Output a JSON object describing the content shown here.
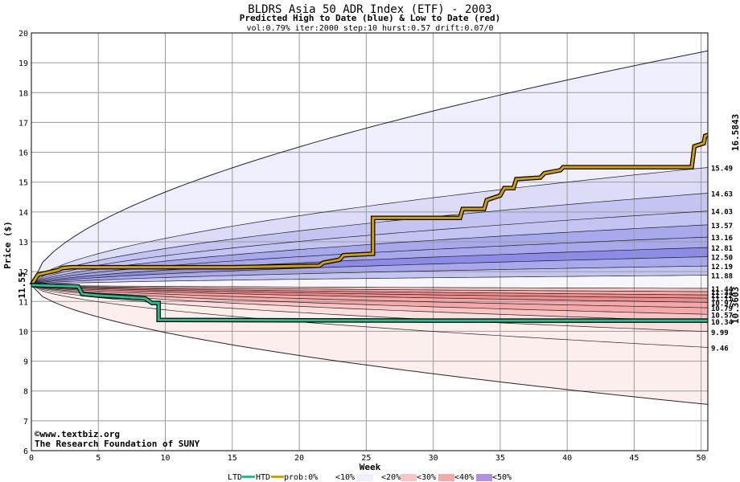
{
  "title": "BLDRS Asia 50 ADR Index (ETF) - 2003",
  "subtitle": "Predicted High to Date (blue) &  Low to Date (red)",
  "params": "vol:0.79% iter:2000 step:10 hurst:0.57 drift:0.07/0",
  "credit1": "©www.textbiz.org",
  "credit2": "The Research Foundation of SUNY",
  "colors": {
    "htd_line": "#d4a000",
    "ltd_line": "#20c090",
    "band_blue": [
      "#eeeefc",
      "#dcdcf8",
      "#c4c4f2",
      "#a8a8ec",
      "#8c8ce6"
    ],
    "band_red": [
      "#fdeeee",
      "#fbdede",
      "#f8c4c4",
      "#f4a8a8",
      "#f08c8c"
    ]
  },
  "legend": {
    "ltd": "LTD",
    "htd": "HTD",
    "prob": "prob:0%",
    "p10": "<10%",
    "p20": "<20%",
    "p30": "<30%",
    "p40": "<40%",
    "p50": "<50%"
  },
  "chart_data": {
    "type": "area",
    "xlabel": "Week",
    "ylabel": "Price ($)",
    "xlim": [
      0,
      50.5
    ],
    "ylim": [
      6,
      20
    ],
    "x_ticks": [
      0,
      5,
      10,
      15,
      20,
      25,
      30,
      35,
      40,
      45,
      50
    ],
    "y_ticks": [
      6,
      7,
      8,
      9,
      10,
      11,
      12,
      13,
      14,
      15,
      16,
      17,
      18,
      19,
      20
    ],
    "grid": true,
    "start_price": 11.55,
    "start_label": "11.55",
    "end_week": 50.5,
    "upper_end_levels": [
      19.4,
      15.49,
      14.63,
      14.03,
      13.57,
      13.16,
      12.81,
      12.5,
      12.19,
      11.88
    ],
    "lower_end_levels": [
      11.44,
      11.33,
      11.22,
      11.11,
      10.97,
      10.79,
      10.57,
      10.34,
      9.99,
      9.46,
      7.55
    ],
    "right_labels": [
      "15.49",
      "14.63",
      "14.03",
      "13.57",
      "13.16",
      "12.81",
      "12.50",
      "12.19",
      "11.88",
      "11.44",
      "11.33",
      "11.22",
      "11.11",
      "10.97",
      "10.79",
      "10.57",
      "10.34",
      "9.99",
      "9.46"
    ],
    "htd_final": "16.5843",
    "ltd_final": "10.3603",
    "htd_path": [
      [
        0,
        11.55
      ],
      [
        0.5,
        11.9
      ],
      [
        1,
        11.95
      ],
      [
        2,
        12.05
      ],
      [
        2.3,
        12.12
      ],
      [
        3,
        12.15
      ],
      [
        10,
        12.15
      ],
      [
        15,
        12.15
      ],
      [
        21.5,
        12.2
      ],
      [
        21.8,
        12.3
      ],
      [
        23,
        12.4
      ],
      [
        23.3,
        12.55
      ],
      [
        25.5,
        12.6
      ],
      [
        25.5,
        13.8
      ],
      [
        32,
        13.8
      ],
      [
        32.2,
        14.1
      ],
      [
        33.8,
        14.1
      ],
      [
        34,
        14.4
      ],
      [
        35,
        14.55
      ],
      [
        35.3,
        14.8
      ],
      [
        36,
        14.8
      ],
      [
        36.2,
        15.1
      ],
      [
        38,
        15.15
      ],
      [
        38.3,
        15.3
      ],
      [
        39.5,
        15.4
      ],
      [
        39.7,
        15.5
      ],
      [
        49.3,
        15.5
      ],
      [
        49.5,
        16.2
      ],
      [
        50.2,
        16.3
      ],
      [
        50.3,
        16.55
      ],
      [
        50.5,
        16.58
      ]
    ],
    "ltd_path": [
      [
        0,
        11.55
      ],
      [
        3.5,
        11.5
      ],
      [
        3.8,
        11.25
      ],
      [
        5,
        11.2
      ],
      [
        7,
        11.15
      ],
      [
        8.5,
        11.1
      ],
      [
        9,
        10.95
      ],
      [
        9.5,
        10.95
      ],
      [
        9.5,
        10.38
      ],
      [
        20,
        10.37
      ],
      [
        30,
        10.36
      ],
      [
        40,
        10.36
      ],
      [
        50.5,
        10.36
      ]
    ]
  }
}
